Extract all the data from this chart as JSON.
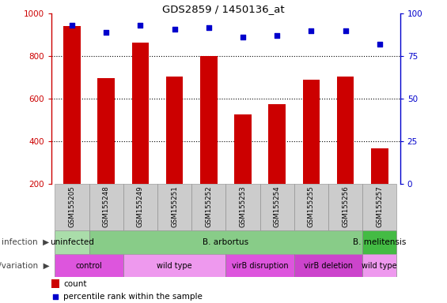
{
  "title": "GDS2859 / 1450136_at",
  "samples": [
    "GSM155205",
    "GSM155248",
    "GSM155249",
    "GSM155251",
    "GSM155252",
    "GSM155253",
    "GSM155254",
    "GSM155255",
    "GSM155256",
    "GSM155257"
  ],
  "counts": [
    940,
    695,
    865,
    705,
    800,
    525,
    575,
    690,
    705,
    365
  ],
  "percentile_ranks": [
    93,
    89,
    93,
    91,
    92,
    86,
    87,
    90,
    90,
    82
  ],
  "ylim_left": [
    200,
    1000
  ],
  "ylim_right": [
    0,
    100
  ],
  "yticks_left": [
    200,
    400,
    600,
    800,
    1000
  ],
  "yticks_right": [
    0,
    25,
    50,
    75,
    100
  ],
  "grid_values": [
    400,
    600,
    800
  ],
  "bar_color": "#cc0000",
  "dot_color": "#0000cc",
  "bar_width": 0.5,
  "infection_groups": [
    {
      "label": "uninfected",
      "start": 0,
      "end": 1,
      "color": "#aaddaa"
    },
    {
      "label": "B. arbortus",
      "start": 1,
      "end": 9,
      "color": "#88cc88"
    },
    {
      "label": "B. melitensis",
      "start": 9,
      "end": 10,
      "color": "#44bb44"
    }
  ],
  "genotype_groups": [
    {
      "label": "control",
      "start": 0,
      "end": 2,
      "color": "#dd55dd"
    },
    {
      "label": "wild type",
      "start": 2,
      "end": 5,
      "color": "#ee99ee"
    },
    {
      "label": "virB disruption",
      "start": 5,
      "end": 7,
      "color": "#dd55dd"
    },
    {
      "label": "virB deletion",
      "start": 7,
      "end": 9,
      "color": "#cc44cc"
    },
    {
      "label": "wild type",
      "start": 9,
      "end": 10,
      "color": "#ee99ee"
    }
  ],
  "infection_label": "infection",
  "genotype_label": "genotype/variation",
  "legend_count_label": "count",
  "legend_pct_label": "percentile rank within the sample",
  "background_color": "#ffffff"
}
